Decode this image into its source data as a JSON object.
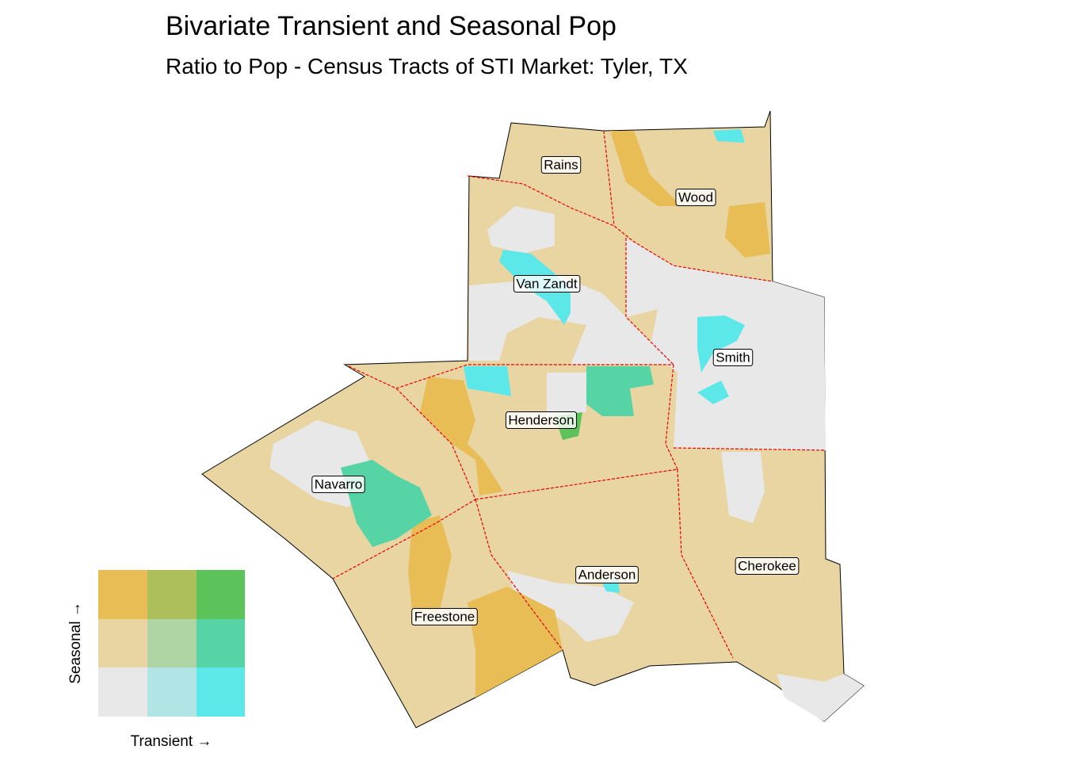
{
  "header": {
    "title": "Bivariate Transient and Seasonal Pop",
    "subtitle": "Ratio to Pop - Census Tracts of STI Market: Tyler, TX"
  },
  "counties": [
    {
      "label": "Rains"
    },
    {
      "label": "Wood"
    },
    {
      "label": "Van Zandt"
    },
    {
      "label": "Smith"
    },
    {
      "label": "Henderson"
    },
    {
      "label": "Navarro"
    },
    {
      "label": "Anderson"
    },
    {
      "label": "Cherokee"
    },
    {
      "label": "Freestone"
    }
  ],
  "legend": {
    "x_label": "Transient →",
    "y_label": "Seasonal →"
  }
}
